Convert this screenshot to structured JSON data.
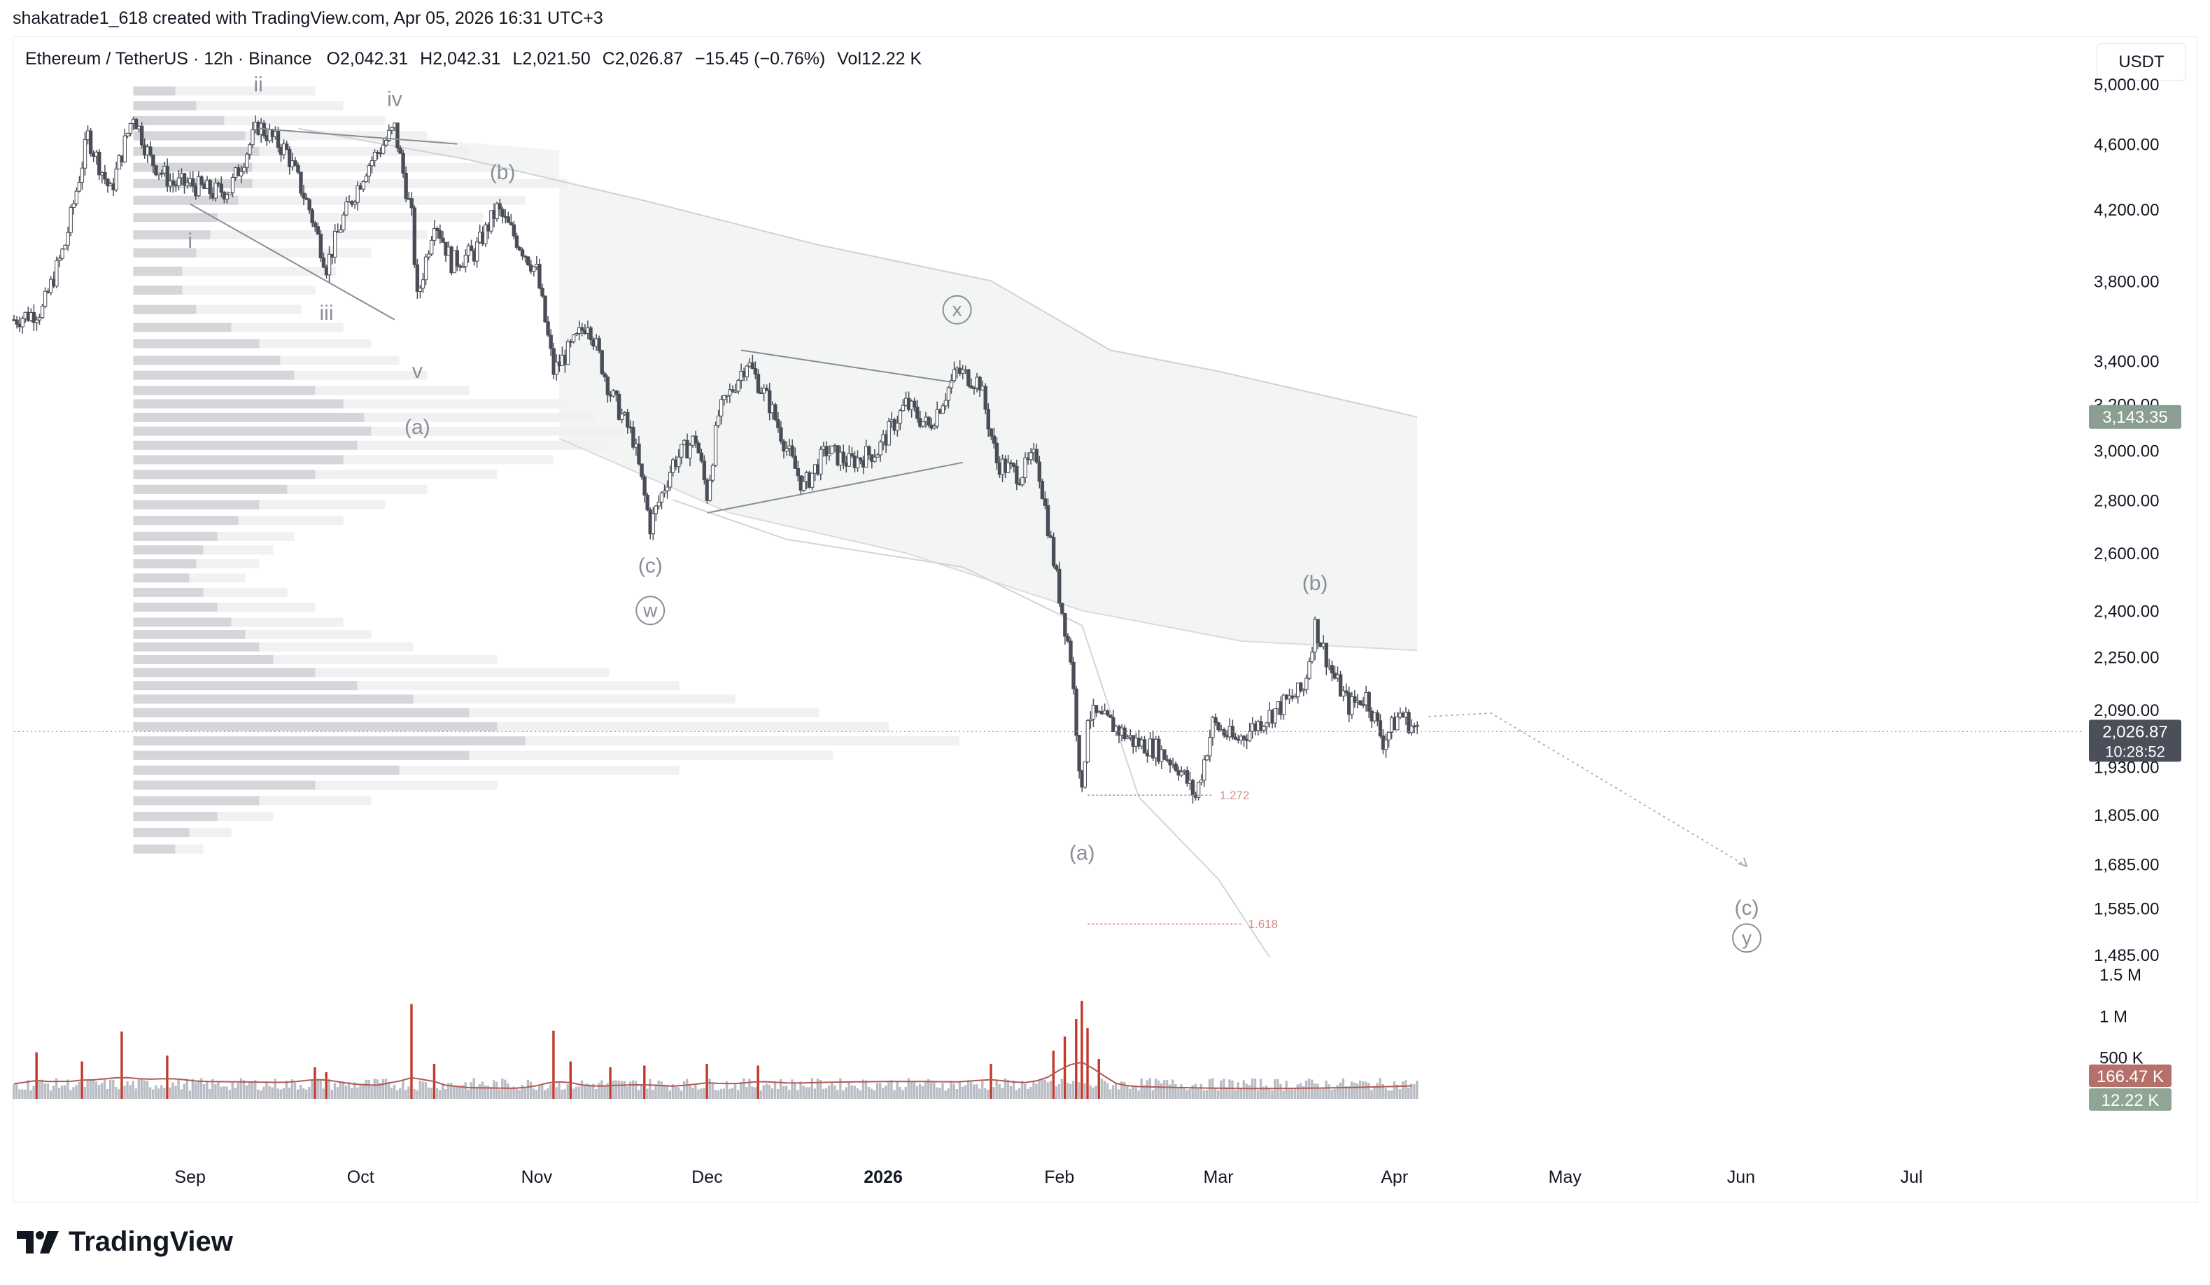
{
  "header": {
    "attribution": "shakatrade1_618 created with TradingView.com, Apr 05, 2026 16:31 UTC+3"
  },
  "legend": {
    "symbol": "Ethereum / TetherUS · 12h · Binance",
    "open_label": "O",
    "open": "2,042.31",
    "high_label": "H",
    "high": "2,042.31",
    "low_label": "L",
    "low": "2,021.50",
    "close_label": "C",
    "close": "2,026.87",
    "change": "−15.45 (−0.76%)",
    "vol_label": "Vol",
    "vol": "12.22 K"
  },
  "currency": "USDT",
  "brand": {
    "name": "TradingView"
  },
  "colors": {
    "candle": "#4a4d57",
    "volume_up": "#b9bcc4",
    "volume_spike": "#c0392b",
    "volume_ma": "#b05a55",
    "grid_text": "#131722",
    "label_gray": "#8a8e97",
    "fib": "#d88c8c",
    "price_badge": "#4b4f59",
    "ma_badge": "#8a9e92",
    "vol_badge_ma": "#b5706b",
    "vol_badge": "#8fa596"
  },
  "chart_data": {
    "type": "line",
    "subtype": "candlestick",
    "scale": "log",
    "ylim": [
      1420,
      5200
    ],
    "xlim": [
      "2025-08-01",
      "2026-07-31"
    ],
    "price_ticks": [
      "5,000.00",
      "4,600.00",
      "4,200.00",
      "3,800.00",
      "3,400.00",
      "3,200.00",
      "3,000.00",
      "2,800.00",
      "2,600.00",
      "2,400.00",
      "2,250.00",
      "2,090.00",
      "1,930.00",
      "1,805.00",
      "1,685.00",
      "1,585.00",
      "1,485.00"
    ],
    "price_tick_values": [
      5000,
      4600,
      4200,
      3800,
      3400,
      3200,
      3000,
      2800,
      2600,
      2400,
      2250,
      2090,
      1930,
      1805,
      1685,
      1585,
      1485
    ],
    "x_ticks": [
      {
        "date": "2025-09-01",
        "label": "Sep"
      },
      {
        "date": "2025-10-01",
        "label": "Oct"
      },
      {
        "date": "2025-11-01",
        "label": "Nov"
      },
      {
        "date": "2025-12-01",
        "label": "Dec"
      },
      {
        "date": "2026-01-01",
        "label": "2026"
      },
      {
        "date": "2026-02-01",
        "label": "Feb"
      },
      {
        "date": "2026-03-01",
        "label": "Mar"
      },
      {
        "date": "2026-04-01",
        "label": "Apr"
      },
      {
        "date": "2026-05-01",
        "label": "May"
      },
      {
        "date": "2026-06-01",
        "label": "Jun"
      },
      {
        "date": "2026-07-01",
        "label": "Jul"
      }
    ],
    "price_path": [
      [
        "2025-08-01",
        3600
      ],
      [
        "2025-08-06",
        3650
      ],
      [
        "2025-08-10",
        4000
      ],
      [
        "2025-08-14",
        4650
      ],
      [
        "2025-08-18",
        4300
      ],
      [
        "2025-08-22",
        4800
      ],
      [
        "2025-08-25",
        4500
      ],
      [
        "2025-08-29",
        4350
      ],
      [
        "2025-09-01",
        4350
      ],
      [
        "2025-09-05",
        4300
      ],
      [
        "2025-09-08",
        4320
      ],
      [
        "2025-09-13",
        4720
      ],
      [
        "2025-09-18",
        4550
      ],
      [
        "2025-09-22",
        4200
      ],
      [
        "2025-09-25",
        3880
      ],
      [
        "2025-09-28",
        4150
      ],
      [
        "2025-10-02",
        4450
      ],
      [
        "2025-10-07",
        4700
      ],
      [
        "2025-10-10",
        4150
      ],
      [
        "2025-10-11",
        3700
      ],
      [
        "2025-10-14",
        4150
      ],
      [
        "2025-10-17",
        3900
      ],
      [
        "2025-10-21",
        3950
      ],
      [
        "2025-10-25",
        4200
      ],
      [
        "2025-10-28",
        4050
      ],
      [
        "2025-11-01",
        3850
      ],
      [
        "2025-11-04",
        3350
      ],
      [
        "2025-11-08",
        3500
      ],
      [
        "2025-11-10",
        3600
      ],
      [
        "2025-11-14",
        3250
      ],
      [
        "2025-11-18",
        3050
      ],
      [
        "2025-11-21",
        2700
      ],
      [
        "2025-11-25",
        2950
      ],
      [
        "2025-11-29",
        3050
      ],
      [
        "2025-12-01",
        2820
      ],
      [
        "2025-12-03",
        3150
      ],
      [
        "2025-12-08",
        3400
      ],
      [
        "2025-12-12",
        3200
      ],
      [
        "2025-12-16",
        2950
      ],
      [
        "2025-12-18",
        2850
      ],
      [
        "2025-12-22",
        3000
      ],
      [
        "2025-12-26",
        2950
      ],
      [
        "2025-12-31",
        3000
      ],
      [
        "2026-01-05",
        3200
      ],
      [
        "2026-01-09",
        3100
      ],
      [
        "2026-01-14",
        3350
      ],
      [
        "2026-01-18",
        3300
      ],
      [
        "2026-01-21",
        2950
      ],
      [
        "2026-01-25",
        2900
      ],
      [
        "2026-01-28",
        2980
      ],
      [
        "2026-02-01",
        2450
      ],
      [
        "2026-02-03",
        2250
      ],
      [
        "2026-02-05",
        1850
      ],
      [
        "2026-02-06",
        2080
      ],
      [
        "2026-02-10",
        2050
      ],
      [
        "2026-02-14",
        2000
      ],
      [
        "2026-02-18",
        1980
      ],
      [
        "2026-02-22",
        1930
      ],
      [
        "2026-02-25",
        1850
      ],
      [
        "2026-02-28",
        2050
      ],
      [
        "2026-03-04",
        2000
      ],
      [
        "2026-03-08",
        2050
      ],
      [
        "2026-03-12",
        2100
      ],
      [
        "2026-03-16",
        2150
      ],
      [
        "2026-03-18",
        2350
      ],
      [
        "2026-03-21",
        2200
      ],
      [
        "2026-03-24",
        2100
      ],
      [
        "2026-03-27",
        2130
      ],
      [
        "2026-03-30",
        2000
      ],
      [
        "2026-04-02",
        2080
      ],
      [
        "2026-04-05",
        2026.87
      ]
    ],
    "ma_upper": [
      [
        "2025-09-20",
        4700
      ],
      [
        "2025-10-20",
        4500
      ],
      [
        "2025-11-20",
        4250
      ],
      [
        "2025-12-20",
        4000
      ],
      [
        "2026-01-20",
        3800
      ],
      [
        "2026-02-10",
        3450
      ],
      [
        "2026-03-01",
        3350
      ],
      [
        "2026-04-05",
        3143.35
      ]
    ],
    "ma_lower": [
      [
        "2025-11-05",
        3050
      ],
      [
        "2025-12-05",
        2750
      ],
      [
        "2026-01-05",
        2600
      ],
      [
        "2026-02-05",
        2400
      ],
      [
        "2026-03-05",
        2300
      ],
      [
        "2026-04-05",
        2270
      ]
    ],
    "support_curve": [
      [
        "2025-11-25",
        2800
      ],
      [
        "2025-12-15",
        2650
      ],
      [
        "2026-01-15",
        2550
      ],
      [
        "2026-02-05",
        2350
      ],
      [
        "2026-02-15",
        1850
      ],
      [
        "2026-03-01",
        1650
      ],
      [
        "2026-03-10",
        1480
      ]
    ],
    "projection": [
      [
        "2026-04-07",
        2070
      ],
      [
        "2026-04-18",
        2080
      ],
      [
        "2026-06-02",
        1680
      ]
    ],
    "trendlines": [
      [
        [
          "2025-09-13",
          4700
        ],
        [
          "2025-10-18",
          4600
        ]
      ],
      [
        [
          "2025-09-01",
          4230
        ],
        [
          "2025-10-07",
          3600
        ]
      ],
      [
        [
          "2025-12-07",
          3450
        ],
        [
          "2026-01-13",
          3300
        ]
      ],
      [
        [
          "2025-12-01",
          2750
        ],
        [
          "2026-01-15",
          2950
        ]
      ]
    ],
    "fib_levels": [
      {
        "label": "1.272",
        "price": 1855,
        "from": "2026-02-06",
        "to": "2026-02-28"
      },
      {
        "label": "1.618",
        "price": 1550,
        "from": "2026-02-06",
        "to": "2026-03-05"
      }
    ],
    "wave_labels": [
      {
        "text": "ii",
        "date": "2025-09-13",
        "price": 4950
      },
      {
        "text": "iv",
        "date": "2025-10-07",
        "price": 4850
      },
      {
        "text": "i",
        "date": "2025-09-01",
        "price": 3980
      },
      {
        "text": "iii",
        "date": "2025-09-25",
        "price": 3600
      },
      {
        "text": "v",
        "date": "2025-10-11",
        "price": 3320
      },
      {
        "text": "(b)",
        "date": "2025-10-26",
        "price": 4380
      },
      {
        "text": "(a)",
        "date": "2025-10-11",
        "price": 3070
      },
      {
        "text": "(c)",
        "date": "2025-11-21",
        "price": 2530
      },
      {
        "text": "(b)",
        "date": "2026-03-18",
        "price": 2470
      },
      {
        "text": "(a)",
        "date": "2026-02-05",
        "price": 1695
      },
      {
        "text": "(c)",
        "date": "2026-06-02",
        "price": 1570
      }
    ],
    "circled_labels": [
      {
        "text": "w",
        "date": "2025-11-21",
        "price": 2400
      },
      {
        "text": "x",
        "date": "2026-01-14",
        "price": 3650
      },
      {
        "text": "y",
        "date": "2026-06-02",
        "price": 1520
      }
    ],
    "price_badges": [
      {
        "price": 3143.35,
        "text": "3,143.35",
        "kind": "ma"
      },
      {
        "price": 2026.87,
        "text": "2,026.87",
        "kind": "last",
        "sub": "10:28:52"
      }
    ],
    "volume": {
      "ylim": [
        0,
        1600000
      ],
      "ticks": [
        {
          "v": 1500000,
          "label": "1.5 M"
        },
        {
          "v": 1000000,
          "label": "1 M"
        },
        {
          "v": 500000,
          "label": "500 K"
        }
      ],
      "spikes": [
        [
          "2025-08-05",
          560000
        ],
        [
          "2025-08-13",
          450000
        ],
        [
          "2025-08-20",
          810000
        ],
        [
          "2025-08-28",
          520000
        ],
        [
          "2025-09-23",
          380000
        ],
        [
          "2025-09-25",
          320000
        ],
        [
          "2025-10-10",
          1140000
        ],
        [
          "2025-10-14",
          420000
        ],
        [
          "2025-11-04",
          820000
        ],
        [
          "2025-11-07",
          450000
        ],
        [
          "2025-11-14",
          380000
        ],
        [
          "2025-11-20",
          400000
        ],
        [
          "2025-12-01",
          420000
        ],
        [
          "2025-12-10",
          400000
        ],
        [
          "2026-01-20",
          420000
        ],
        [
          "2026-01-31",
          580000
        ],
        [
          "2026-02-02",
          750000
        ],
        [
          "2026-02-04",
          960000
        ],
        [
          "2026-02-05",
          1180000
        ],
        [
          "2026-02-06",
          850000
        ],
        [
          "2026-02-08",
          480000
        ]
      ],
      "ma_value": "166.47 K",
      "ma": 166470,
      "last_value": "12.22 K",
      "last": 12220
    },
    "volume_profile_rows": [
      [
        4950,
        60,
        260
      ],
      [
        4850,
        90,
        300
      ],
      [
        4750,
        130,
        360
      ],
      [
        4650,
        160,
        420
      ],
      [
        4550,
        180,
        480
      ],
      [
        4450,
        170,
        520
      ],
      [
        4350,
        170,
        620
      ],
      [
        4250,
        150,
        560
      ],
      [
        4150,
        120,
        500
      ],
      [
        4050,
        110,
        420
      ],
      [
        3950,
        90,
        340
      ],
      [
        3850,
        70,
        290
      ],
      [
        3750,
        70,
        260
      ],
      [
        3650,
        90,
        240
      ],
      [
        3560,
        140,
        300
      ],
      [
        3480,
        180,
        340
      ],
      [
        3400,
        210,
        380
      ],
      [
        3330,
        230,
        420
      ],
      [
        3260,
        260,
        480
      ],
      [
        3200,
        300,
        620
      ],
      [
        3140,
        330,
        660
      ],
      [
        3080,
        340,
        700
      ],
      [
        3020,
        320,
        680
      ],
      [
        2960,
        300,
        600
      ],
      [
        2900,
        260,
        520
      ],
      [
        2840,
        220,
        420
      ],
      [
        2780,
        180,
        360
      ],
      [
        2720,
        150,
        300
      ],
      [
        2660,
        120,
        230
      ],
      [
        2610,
        100,
        200
      ],
      [
        2560,
        90,
        180
      ],
      [
        2510,
        80,
        160
      ],
      [
        2460,
        100,
        220
      ],
      [
        2410,
        120,
        260
      ],
      [
        2360,
        140,
        300
      ],
      [
        2320,
        160,
        340
      ],
      [
        2280,
        180,
        400
      ],
      [
        2240,
        200,
        520
      ],
      [
        2200,
        260,
        680
      ],
      [
        2160,
        320,
        780
      ],
      [
        2120,
        400,
        860
      ],
      [
        2080,
        480,
        980
      ],
      [
        2040,
        520,
        1080
      ],
      [
        2000,
        560,
        1180
      ],
      [
        1960,
        480,
        1000
      ],
      [
        1920,
        380,
        780
      ],
      [
        1880,
        260,
        520
      ],
      [
        1840,
        180,
        340
      ],
      [
        1800,
        120,
        200
      ],
      [
        1760,
        80,
        140
      ],
      [
        1720,
        60,
        100
      ]
    ]
  }
}
